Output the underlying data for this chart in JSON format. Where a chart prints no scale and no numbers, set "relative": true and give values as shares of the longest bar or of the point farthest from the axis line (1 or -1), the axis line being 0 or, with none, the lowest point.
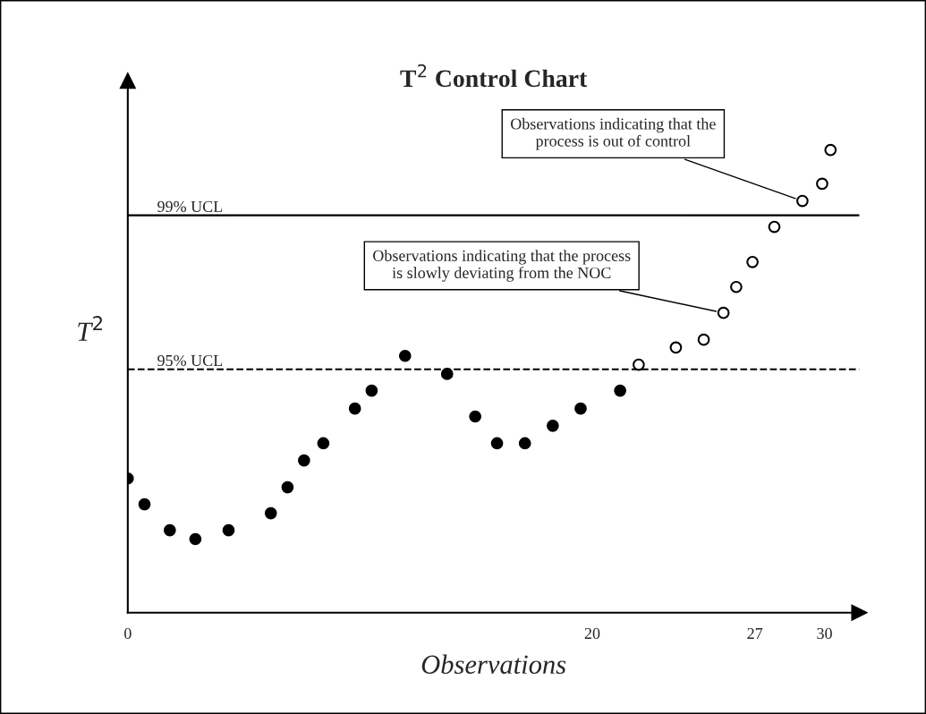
{
  "chart_data": {
    "type": "scatter",
    "title": "T$^{2}$ Control Chart",
    "xlabel": "Observations",
    "ylabel": "T$^{2}$",
    "relative": true,
    "marker": "circle",
    "grid": false,
    "tick_labels": "x",
    "xlim": [
      0,
      31.5
    ],
    "xticks": [
      0,
      20,
      27,
      30
    ],
    "series": [
      {
        "color": "#000000",
        "x": [
          0,
          0.72,
          1.81,
          2.91,
          4.34,
          6.16,
          6.88,
          7.59,
          8.42,
          9.78,
          10.5,
          11.94,
          13.75,
          14.96,
          15.9,
          17.1,
          18.3,
          19.5,
          21.2
        ],
        "values": [
          0.29,
          0.234,
          0.178,
          0.159,
          0.178,
          0.215,
          0.271,
          0.329,
          0.366,
          0.441,
          0.48,
          0.555,
          0.516,
          0.424,
          0.366,
          0.366,
          0.404,
          0.441,
          0.48
        ]
      },
      {
        "color": "#ffffff",
        "x": [
          22.0,
          23.6,
          24.8,
          25.65,
          26.2,
          26.9,
          27.84,
          29.05,
          29.9,
          30.26
        ],
        "values": [
          0.536,
          0.573,
          0.59,
          0.648,
          0.704,
          0.758,
          0.834,
          0.89,
          0.927,
          1.0
        ]
      }
    ],
    "ref_lines": [
      {
        "axis": "y",
        "value": 0.859,
        "label": "99% UCL",
        "line_style": "solid"
      },
      {
        "axis": "y",
        "value": 0.526,
        "label": "95% UCL",
        "line_style": "dashed"
      }
    ],
    "annotations": [
      {
        "text": "Observations indicating that the\nprocess is out of control",
        "x": 29.05,
        "y": 0.89
      },
      {
        "text": "Observations indicating that the process\nis slowly deviating from the NOC",
        "x": 25.65,
        "y": 0.648
      }
    ]
  }
}
